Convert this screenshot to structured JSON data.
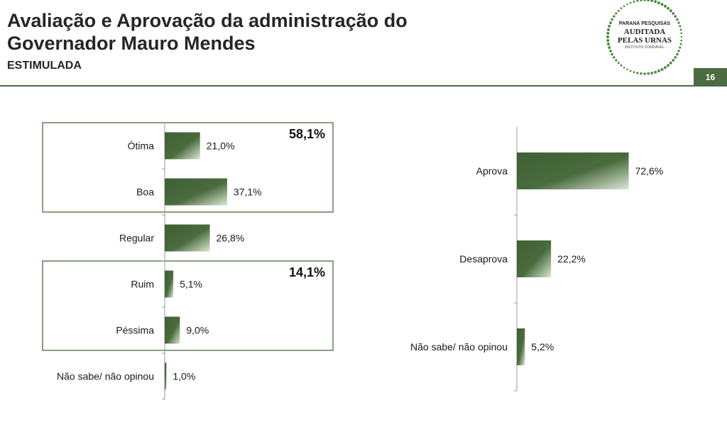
{
  "header": {
    "title_line1": "Avaliação e Aprovação da administração do",
    "title_line2": "Governador Mauro Mendes",
    "subtitle": "ESTIMULADA",
    "page_number": "16"
  },
  "seal": {
    "line1": "PARANÁ PESQUISAS",
    "line2": "AUDITADA",
    "line3": "PELAS URNAS",
    "line4": "INSTITUTO CONFIÁVEL"
  },
  "colors": {
    "bar_dark": "#3f5f34",
    "bar_light": "#dbe8d4",
    "accent": "#4c6b40",
    "box_border": "#4c6b40"
  },
  "chart_data": [
    {
      "type": "bar",
      "orientation": "horizontal",
      "categories": [
        "Ótima",
        "Boa",
        "Regular",
        "Ruim",
        "Péssima",
        "Não sabe/ não opinou"
      ],
      "values": [
        21.0,
        37.1,
        26.8,
        5.1,
        9.0,
        1.0
      ],
      "value_labels": [
        "21,0%",
        "37,1%",
        "26,8%",
        "5,1%",
        "9,0%",
        "1,0%"
      ],
      "groups": [
        {
          "label": "58,1%",
          "value": 58.1,
          "categories": [
            "Ótima",
            "Boa"
          ]
        },
        {
          "label": "14,1%",
          "value": 14.1,
          "categories": [
            "Ruim",
            "Péssima"
          ]
        }
      ],
      "xlim": [
        0,
        100
      ],
      "grid": false
    },
    {
      "type": "bar",
      "orientation": "horizontal",
      "categories": [
        "Aprova",
        "Desaprova",
        "Não sabe/ não opinou"
      ],
      "values": [
        72.6,
        22.2,
        5.2
      ],
      "value_labels": [
        "72,6%",
        "22,2%",
        "5,2%"
      ],
      "xlim": [
        0,
        100
      ],
      "grid": false
    }
  ]
}
